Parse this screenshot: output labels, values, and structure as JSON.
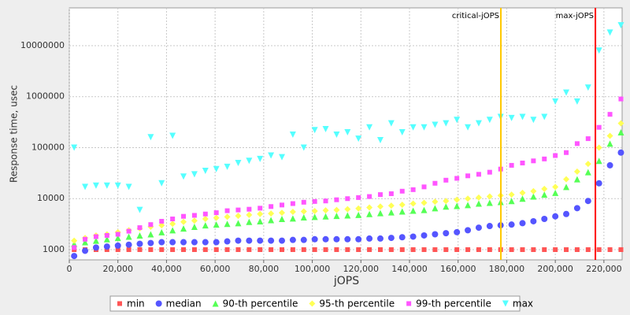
{
  "chart_data": {
    "type": "scatter",
    "xlabel": "jOPS",
    "ylabel": "Response time, usec",
    "xlim": [
      0,
      227500
    ],
    "ylim": [
      630,
      55000000
    ],
    "yscale": "log",
    "grid": true,
    "legend": "bottom",
    "xticks": [
      0,
      {
        "value": 20000,
        "label": "20,000"
      },
      {
        "value": 40000,
        "label": "40,000"
      },
      {
        "value": 60000,
        "label": "60,000"
      },
      {
        "value": 80000,
        "label": "80,000"
      },
      {
        "value": 100000,
        "label": "100,000"
      },
      {
        "value": 120000,
        "label": "120,000"
      },
      {
        "value": 140000,
        "label": "140,000"
      },
      {
        "value": 160000,
        "label": "160,000"
      },
      {
        "value": 180000,
        "label": "180,000"
      },
      {
        "value": 200000,
        "label": "200,000"
      },
      {
        "value": 220000,
        "label": "220,000"
      }
    ],
    "yticks": [
      1000,
      10000,
      100000,
      1000000,
      10000000
    ],
    "markers": [
      {
        "label": "critical-jOPS",
        "value": 177600,
        "color": "#ffc800"
      },
      {
        "label": "max-jOPS",
        "value": 216500,
        "color": "#ff0000"
      }
    ],
    "x": [
      2000,
      6500,
      11000,
      15500,
      20000,
      24500,
      29000,
      33500,
      38000,
      42500,
      47000,
      51500,
      56000,
      60500,
      65000,
      69500,
      74000,
      78500,
      83000,
      87500,
      92000,
      96500,
      101000,
      105500,
      110000,
      114500,
      119000,
      123500,
      128000,
      132500,
      137000,
      141500,
      146000,
      150500,
      155000,
      159500,
      164000,
      168500,
      173000,
      177500,
      182000,
      186500,
      191000,
      195500,
      200000,
      204500,
      209000,
      213500,
      218000,
      222500,
      227000
    ],
    "series": [
      {
        "name": "min",
        "color": "#ff5555",
        "marker": "square",
        "values": [
          1000,
          1000,
          1000,
          1000,
          1000,
          1000,
          1000,
          1000,
          1000,
          1000,
          1000,
          1000,
          1000,
          1000,
          1000,
          1000,
          1000,
          1000,
          1000,
          1000,
          1000,
          1000,
          1000,
          1000,
          1000,
          1000,
          1000,
          1000,
          1000,
          1000,
          1000,
          1000,
          1000,
          1000,
          1000,
          1000,
          1000,
          1000,
          1000,
          1000,
          1000,
          1000,
          1000,
          1000,
          1000,
          1000,
          1000,
          1000,
          1000,
          1000,
          1000
        ]
      },
      {
        "name": "median",
        "color": "#5555ff",
        "marker": "circle",
        "values": [
          750,
          950,
          1100,
          1150,
          1200,
          1250,
          1300,
          1350,
          1400,
          1400,
          1400,
          1400,
          1400,
          1400,
          1450,
          1500,
          1500,
          1500,
          1500,
          1500,
          1550,
          1550,
          1600,
          1600,
          1600,
          1600,
          1600,
          1650,
          1650,
          1700,
          1750,
          1800,
          1900,
          2000,
          2100,
          2200,
          2400,
          2700,
          2900,
          3000,
          3100,
          3300,
          3600,
          4000,
          4500,
          5000,
          6500,
          9000,
          20000,
          45000,
          80000
        ]
      },
      {
        "name": "90-th percentile",
        "color": "#55ff55",
        "marker": "triangle",
        "values": [
          1300,
          1400,
          1500,
          1600,
          1700,
          1800,
          1900,
          2000,
          2200,
          2400,
          2600,
          2800,
          3000,
          3100,
          3200,
          3300,
          3500,
          3600,
          3800,
          4000,
          4100,
          4300,
          4400,
          4500,
          4600,
          4700,
          4800,
          5000,
          5200,
          5400,
          5600,
          5800,
          6000,
          6500,
          7000,
          7200,
          7500,
          8000,
          8300,
          8600,
          9000,
          10000,
          11000,
          12000,
          13000,
          17000,
          24000,
          33000,
          55000,
          120000,
          200000
        ]
      },
      {
        "name": "95-th percentile",
        "color": "#ffff55",
        "marker": "diamond",
        "values": [
          1500,
          1700,
          1900,
          2000,
          2200,
          2400,
          2600,
          2800,
          3000,
          3200,
          3500,
          3700,
          4000,
          4200,
          4400,
          4600,
          4800,
          5000,
          5100,
          5300,
          5500,
          5600,
          5700,
          5900,
          6000,
          6200,
          6400,
          6700,
          7000,
          7300,
          7600,
          8000,
          8300,
          8700,
          9000,
          9500,
          10000,
          10500,
          11000,
          11500,
          12000,
          13000,
          14000,
          15500,
          17000,
          24000,
          34000,
          48000,
          100000,
          170000,
          300000
        ]
      },
      {
        "name": "99-th percentile",
        "color": "#ff55ff",
        "marker": "square",
        "values": [
          1100,
          1600,
          1800,
          1900,
          2000,
          2300,
          2700,
          3100,
          3600,
          4000,
          4500,
          4700,
          5000,
          5300,
          5800,
          6000,
          6200,
          6500,
          7000,
          7500,
          8000,
          8500,
          8800,
          9000,
          9500,
          10000,
          10500,
          11000,
          12000,
          12500,
          14000,
          15000,
          17000,
          20000,
          23000,
          25000,
          28000,
          30000,
          33000,
          38000,
          45000,
          50000,
          55000,
          60000,
          70000,
          80000,
          120000,
          150000,
          250000,
          450000,
          900000
        ]
      },
      {
        "name": "max",
        "color": "#55ffff",
        "marker": "down-triangle",
        "values": [
          100000,
          17000,
          18000,
          18000,
          18000,
          17000,
          6000,
          160000,
          20000,
          170000,
          27000,
          30000,
          35000,
          38000,
          42000,
          50000,
          55000,
          60000,
          70000,
          65000,
          180000,
          100000,
          220000,
          230000,
          180000,
          200000,
          150000,
          250000,
          140000,
          300000,
          200000,
          250000,
          250000,
          280000,
          300000,
          350000,
          250000,
          300000,
          350000,
          400000,
          380000,
          400000,
          350000,
          400000,
          800000,
          1200000,
          800000,
          1500000,
          8000000,
          18000000,
          25000000
        ]
      }
    ]
  }
}
